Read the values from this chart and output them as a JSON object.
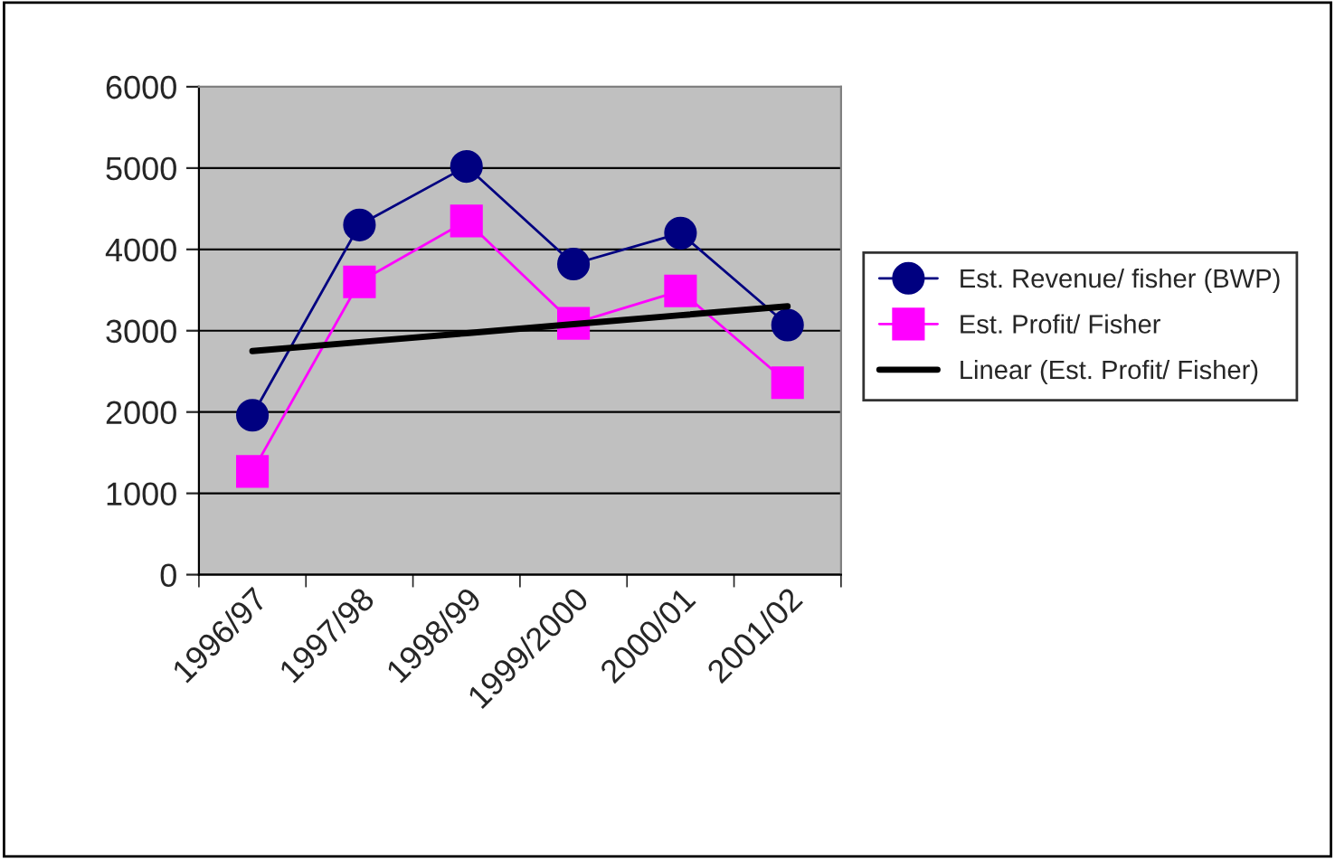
{
  "chart_data": {
    "type": "line",
    "categories": [
      "1996/97",
      "1997/98",
      "1998/99",
      "1999/2000",
      "2000/01",
      "2001/02"
    ],
    "series": [
      {
        "name": "Est. Revenue/ fisher (BWP)",
        "color": "#000080",
        "marker": "circle",
        "values": [
          1960,
          4300,
          5020,
          3820,
          4200,
          3070
        ]
      },
      {
        "name": "Est. Profit/ Fisher",
        "color": "#ff00ff",
        "marker": "square",
        "values": [
          1270,
          3600,
          4350,
          3090,
          3490,
          2360
        ]
      },
      {
        "name": "Linear (Est. Profit/ Fisher)",
        "color": "#000000",
        "marker": "none",
        "values": [
          2750,
          2860,
          2970,
          3080,
          3190,
          3300
        ]
      }
    ],
    "ylim": [
      0,
      6000
    ],
    "yticks": [
      0,
      1000,
      2000,
      3000,
      4000,
      5000,
      6000
    ],
    "grid": "y",
    "legend": "right"
  }
}
